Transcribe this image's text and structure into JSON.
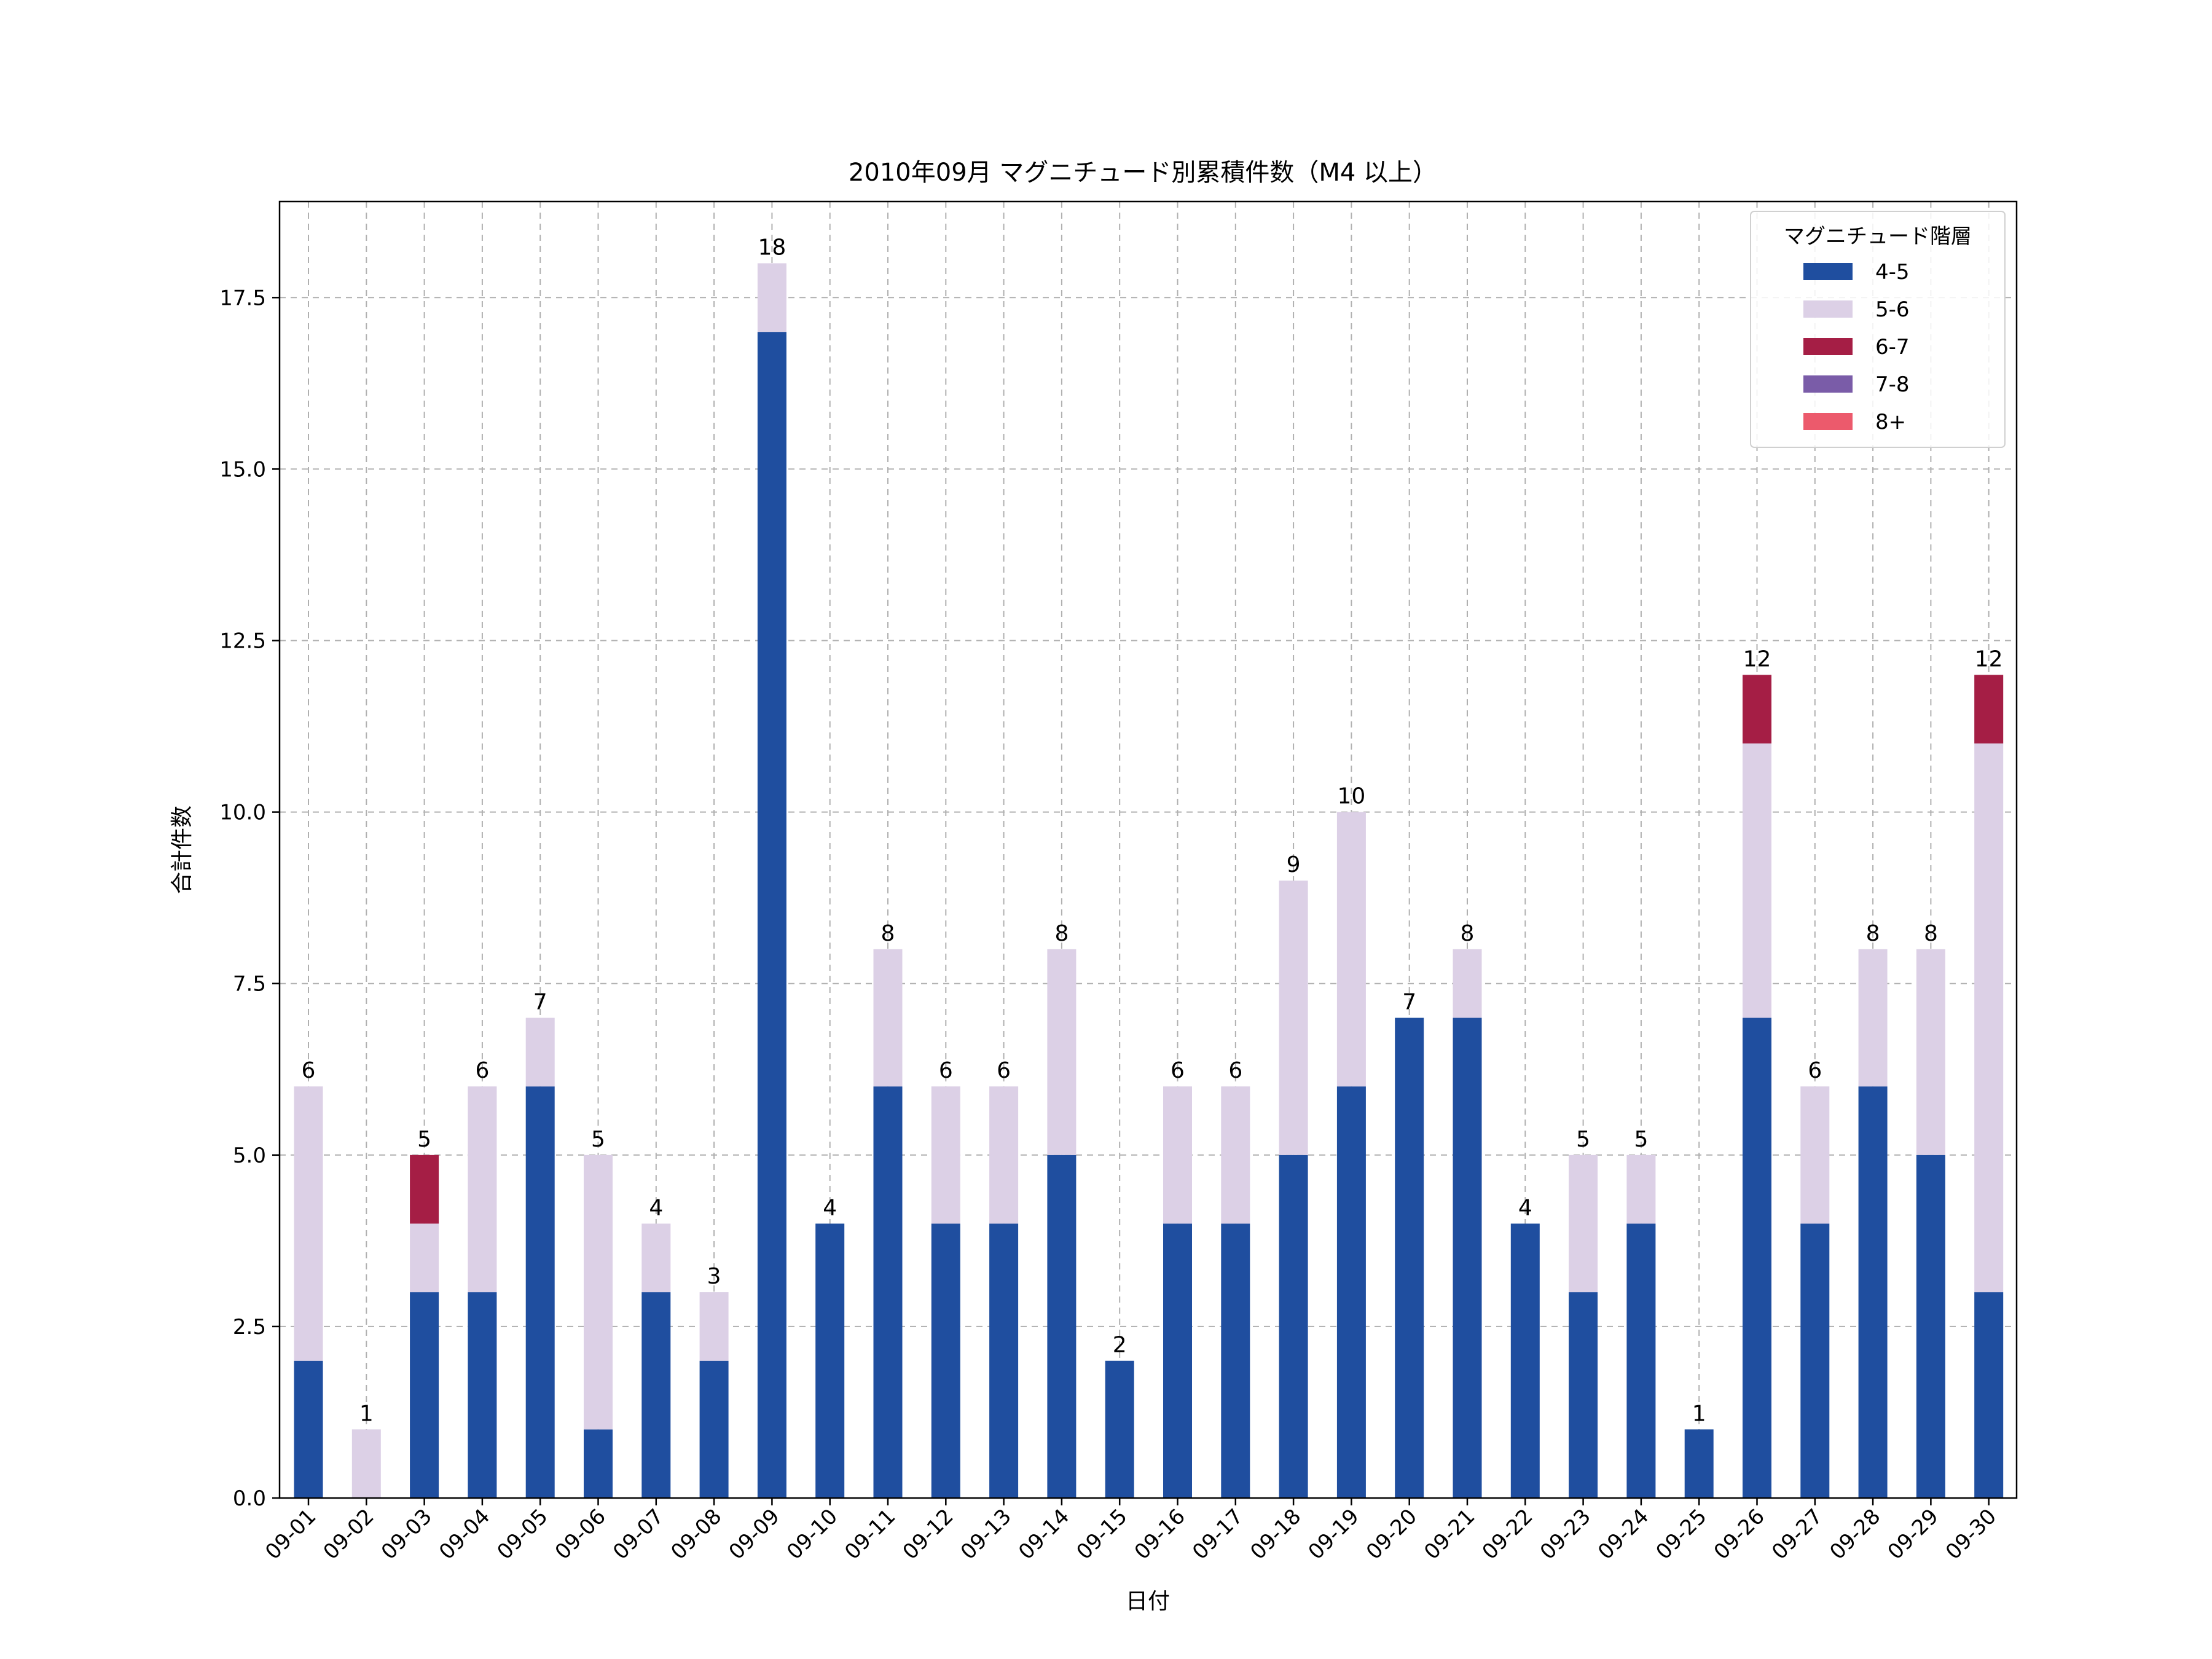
{
  "chart_data": {
    "type": "bar",
    "stacked": true,
    "title": "2010年09月 マグニチュード別累積件数（M4 以上）",
    "xlabel": "日付",
    "ylabel": "合計件数",
    "ylim": [
      0,
      18.9
    ],
    "yticks": [
      "0.0",
      "2.5",
      "5.0",
      "7.5",
      "10.0",
      "12.5",
      "15.0",
      "17.5"
    ],
    "grid": true,
    "legend": {
      "title": "マグニチュード階層",
      "placement": "top-right"
    },
    "categories": [
      "09-01",
      "09-02",
      "09-03",
      "09-04",
      "09-05",
      "09-06",
      "09-07",
      "09-08",
      "09-09",
      "09-10",
      "09-11",
      "09-12",
      "09-13",
      "09-14",
      "09-15",
      "09-16",
      "09-17",
      "09-18",
      "09-19",
      "09-20",
      "09-21",
      "09-22",
      "09-23",
      "09-24",
      "09-25",
      "09-26",
      "09-27",
      "09-28",
      "09-29",
      "09-30"
    ],
    "series": [
      {
        "name": "4-5",
        "color": "#1f4e9f",
        "values": [
          2,
          0,
          3,
          3,
          6,
          1,
          3,
          2,
          17,
          4,
          6,
          4,
          4,
          5,
          2,
          4,
          4,
          5,
          6,
          7,
          7,
          4,
          3,
          4,
          1,
          7,
          4,
          6,
          5,
          3
        ]
      },
      {
        "name": "5-6",
        "color": "#dcd0e6",
        "values": [
          4,
          1,
          1,
          3,
          1,
          4,
          1,
          1,
          1,
          0,
          2,
          2,
          2,
          3,
          0,
          2,
          2,
          4,
          4,
          0,
          1,
          0,
          2,
          1,
          0,
          4,
          2,
          2,
          3,
          8
        ]
      },
      {
        "name": "6-7",
        "color": "#a51e45",
        "values": [
          0,
          0,
          1,
          0,
          0,
          0,
          0,
          0,
          0,
          0,
          0,
          0,
          0,
          0,
          0,
          0,
          0,
          0,
          0,
          0,
          0,
          0,
          0,
          0,
          0,
          1,
          0,
          0,
          0,
          1
        ]
      },
      {
        "name": "7-8",
        "color": "#7a5ca8",
        "values": [
          0,
          0,
          0,
          0,
          0,
          0,
          0,
          0,
          0,
          0,
          0,
          0,
          0,
          0,
          0,
          0,
          0,
          0,
          0,
          0,
          0,
          0,
          0,
          0,
          0,
          0,
          0,
          0,
          0,
          0
        ]
      },
      {
        "name": "8+",
        "color": "#ec5a6c",
        "values": [
          0,
          0,
          0,
          0,
          0,
          0,
          0,
          0,
          0,
          0,
          0,
          0,
          0,
          0,
          0,
          0,
          0,
          0,
          0,
          0,
          0,
          0,
          0,
          0,
          0,
          0,
          0,
          0,
          0,
          0
        ]
      }
    ],
    "totals": [
      6,
      1,
      5,
      6,
      7,
      5,
      4,
      3,
      18,
      4,
      8,
      6,
      6,
      8,
      2,
      6,
      6,
      9,
      10,
      7,
      8,
      4,
      5,
      5,
      1,
      12,
      6,
      8,
      8,
      12
    ]
  }
}
